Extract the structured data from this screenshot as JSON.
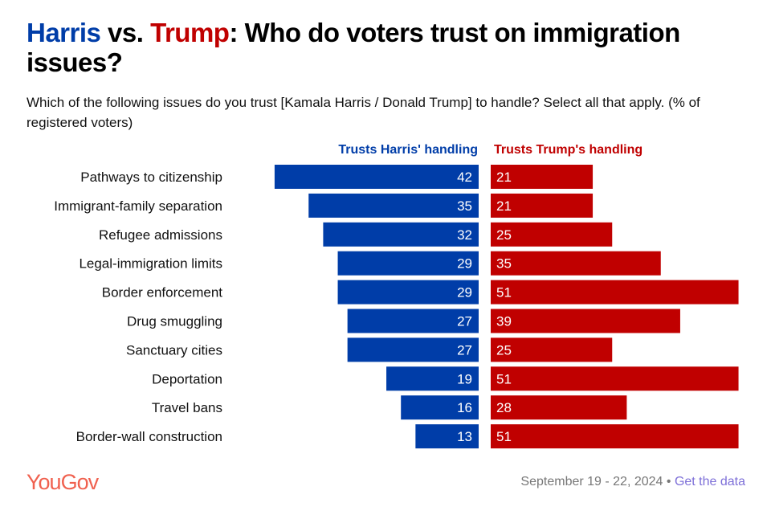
{
  "title": {
    "harris": "Harris",
    "vs": " vs. ",
    "trump": "Trump",
    "rest": ": Who do voters trust on immigration issues?"
  },
  "subtitle": "Which of the following issues do you trust [Kamala Harris / Donald Trump] to handle? Select all that apply. (% of registered voters)",
  "colors": {
    "harris": "#003da8",
    "trump": "#c00000"
  },
  "chart_data": {
    "type": "bar",
    "orientation": "horizontal-diverging",
    "categories": [
      "Pathways to citizenship",
      "Immigrant-family separation",
      "Refugee admissions",
      "Legal-immigration limits",
      "Border enforcement",
      "Drug smuggling",
      "Sanctuary cities",
      "Deportation",
      "Travel bans",
      "Border-wall construction"
    ],
    "series": [
      {
        "name": "Trusts Harris' handling",
        "values": [
          42,
          35,
          32,
          29,
          29,
          27,
          27,
          19,
          16,
          13
        ]
      },
      {
        "name": "Trusts Trump's handling",
        "values": [
          21,
          21,
          25,
          35,
          51,
          39,
          25,
          51,
          28,
          51
        ]
      }
    ]
  },
  "footer": {
    "logo": "YouGov",
    "date": "September 19 - 22, 2024",
    "separator": " • ",
    "link": "Get the data"
  }
}
